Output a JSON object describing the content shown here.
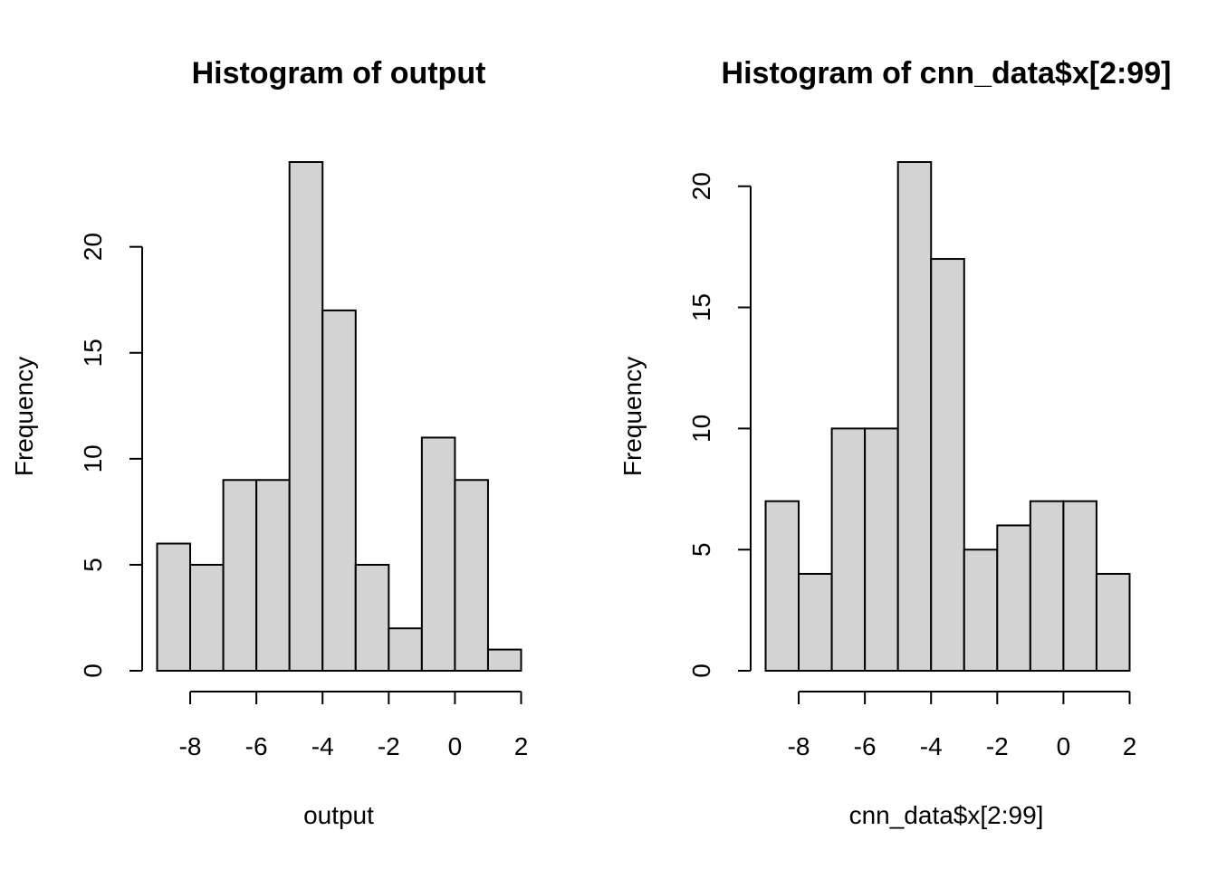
{
  "chart_data": [
    {
      "type": "bar",
      "title": "Histogram of output",
      "xlabel": "output",
      "ylabel": "Frequency",
      "breaks": [
        -9,
        -8,
        -7,
        -6,
        -5,
        -4,
        -3,
        -2,
        -1,
        0,
        1,
        2
      ],
      "values": [
        6,
        5,
        9,
        9,
        24,
        17,
        5,
        2,
        11,
        9,
        1
      ],
      "xlim": [
        -9,
        2
      ],
      "ylim": [
        0,
        24
      ],
      "xticks": [
        -8,
        -6,
        -4,
        -2,
        0,
        2
      ],
      "xtick_labels": [
        "-8",
        "-6",
        "-4",
        "-2",
        "0",
        "2"
      ],
      "yticks": [
        0,
        5,
        10,
        15,
        20
      ],
      "ytick_labels": [
        "0",
        "5",
        "10",
        "15",
        "20"
      ],
      "bar_color": "#d3d3d3",
      "grid": false
    },
    {
      "type": "bar",
      "title": "Histogram of cnn_data$x[2:99]",
      "xlabel": "cnn_data$x[2:99]",
      "ylabel": "Frequency",
      "breaks": [
        -9,
        -8,
        -7,
        -6,
        -5,
        -4,
        -3,
        -2,
        -1,
        0,
        1,
        2
      ],
      "values": [
        7,
        4,
        10,
        10,
        21,
        17,
        5,
        6,
        7,
        7,
        4
      ],
      "xlim": [
        -9,
        2
      ],
      "ylim": [
        0,
        21
      ],
      "xticks": [
        -8,
        -6,
        -4,
        -2,
        0,
        2
      ],
      "xtick_labels": [
        "-8",
        "-6",
        "-4",
        "-2",
        "0",
        "2"
      ],
      "yticks": [
        0,
        5,
        10,
        15,
        20
      ],
      "ytick_labels": [
        "0",
        "5",
        "10",
        "15",
        "20"
      ],
      "bar_color": "#d3d3d3",
      "grid": false
    }
  ]
}
